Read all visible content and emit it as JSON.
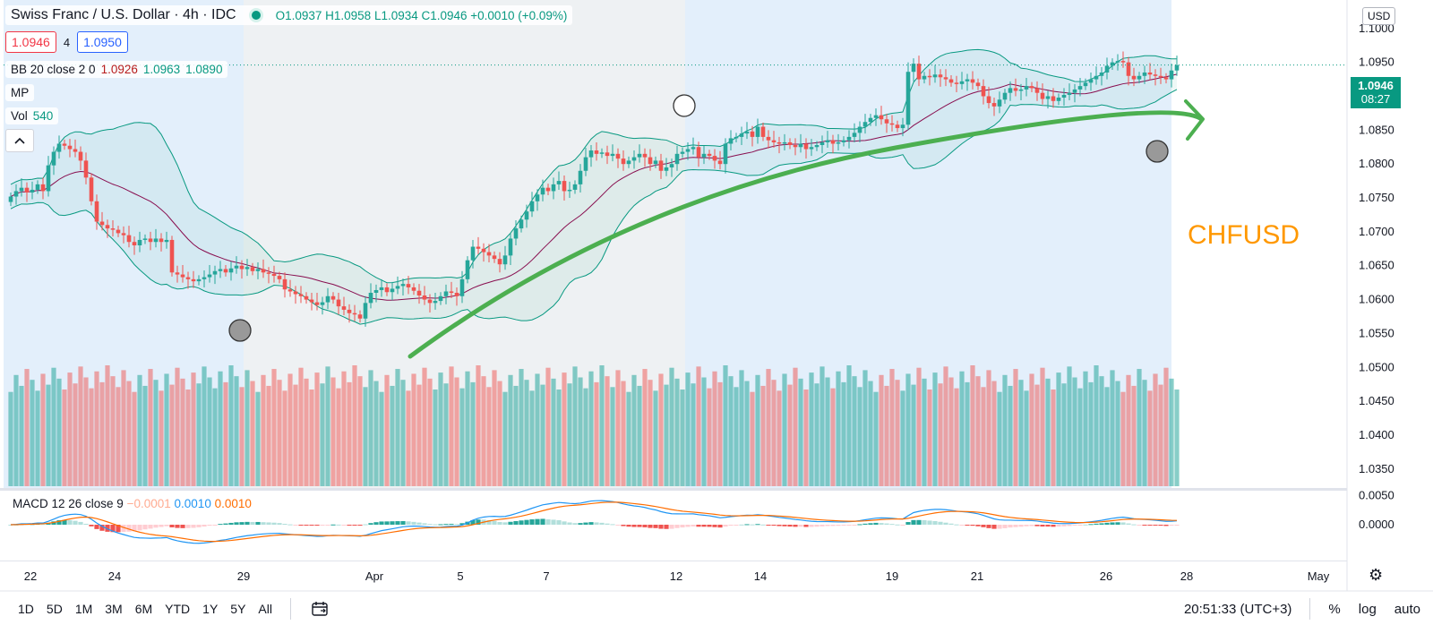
{
  "header": {
    "title": "Swiss Franc / U.S. Dollar · 4h · IDC",
    "ohlc": "O1.0937 H1.0958 L1.0934 C1.0946 +0.0010 (+0.09%)",
    "sell_price": "1.0946",
    "spread": "4",
    "buy_price": "1.0950"
  },
  "indicators": {
    "bb": {
      "label": "BB 20 close 2 0",
      "v1": "1.0926",
      "v2": "1.0963",
      "v3": "1.0890"
    },
    "mp": "MP",
    "vol": {
      "label": "Vol",
      "value": "540"
    },
    "macd": {
      "label": "MACD 12 26 close 9",
      "v1": "−0.0001",
      "v2": "0.0010",
      "v3": "0.0010"
    }
  },
  "collapse_icon": "chevron-up-icon",
  "currency_badge": "USD",
  "current_price": {
    "value": "1.0946",
    "countdown": "08:27"
  },
  "annotation": "CHFUSD",
  "colors": {
    "up": "#26a69a",
    "down": "#ef5350",
    "bb_band": "#089981",
    "bb_basis": "#880e4f",
    "macd": "#2196f3",
    "signal": "#ff6d00",
    "trend_arrow": "#4caf50",
    "session_blue": "#e3effb",
    "session_gray": "#eef1f3"
  },
  "toolbar": {
    "timeframes": [
      "1D",
      "5D",
      "1M",
      "3M",
      "6M",
      "YTD",
      "1Y",
      "5Y",
      "All"
    ],
    "calendar_icon": "calendar-range-icon",
    "clock": "20:51:33 (UTC+3)",
    "percent": "%",
    "log": "log",
    "auto": "auto",
    "settings_icon": "gear-icon"
  },
  "chart_data": {
    "type": "candlestick",
    "price_axis": {
      "ticks": [
        "1.1000",
        "1.0950",
        "1.0900",
        "1.0850",
        "1.0800",
        "1.0750",
        "1.0700",
        "1.0650",
        "1.0600",
        "1.0550",
        "1.0500",
        "1.0450",
        "1.0400",
        "1.0350"
      ],
      "range": [
        1.0322,
        1.1042
      ]
    },
    "macd_axis": {
      "ticks": [
        "0.0050",
        "0.0000"
      ],
      "range": [
        -0.006,
        0.006
      ]
    },
    "time_axis": {
      "labels": [
        "22",
        "24",
        "29",
        "Apr",
        "5",
        "7",
        "12",
        "14",
        "19",
        "21",
        "26",
        "28",
        "May"
      ]
    },
    "close": [
      1.0752,
      1.076,
      1.0765,
      1.0758,
      1.0762,
      1.077,
      1.076,
      1.0798,
      1.0818,
      1.083,
      1.0827,
      1.0822,
      1.0818,
      1.0805,
      1.078,
      1.0745,
      1.0715,
      1.071,
      1.0705,
      1.0703,
      1.0698,
      1.0695,
      1.0685,
      1.068,
      1.0688,
      1.069,
      1.0685,
      1.069,
      1.0685,
      1.0688,
      1.064,
      1.0637,
      1.0633,
      1.063,
      1.0627,
      1.063,
      1.0633,
      1.0637,
      1.0642,
      1.0645,
      1.064,
      1.0646,
      1.065,
      1.0645,
      1.0648,
      1.0642,
      1.0645,
      1.064,
      1.0638,
      1.0635,
      1.063,
      1.0615,
      1.0612,
      1.0608,
      1.0605,
      1.06,
      1.0596,
      1.0592,
      1.0596,
      1.0605,
      1.06,
      1.059,
      1.0585,
      1.058,
      1.0578,
      1.0572,
      1.0595,
      1.061,
      1.0614,
      1.0618,
      1.0611,
      1.0616,
      1.062,
      1.0623,
      1.0618,
      1.0613,
      1.0606,
      1.06,
      1.0595,
      1.0598,
      1.0605,
      1.0612,
      1.061,
      1.0605,
      1.063,
      1.0658,
      1.0678,
      1.0675,
      1.067,
      1.0665,
      1.066,
      1.0652,
      1.0665,
      1.069,
      1.0705,
      1.0718,
      1.073,
      1.0745,
      1.0755,
      1.0765,
      1.076,
      1.077,
      1.0775,
      1.076,
      1.0762,
      1.077,
      1.079,
      1.081,
      1.082,
      1.0815,
      1.0817,
      1.0812,
      1.0815,
      1.0808,
      1.08,
      1.0805,
      1.081,
      1.0815,
      1.081,
      1.08,
      1.0805,
      1.079,
      1.0795,
      1.08,
      1.0815,
      1.0818,
      1.0822,
      1.0825,
      1.081,
      1.0815,
      1.0812,
      1.0805,
      1.08,
      1.083,
      1.0838,
      1.084,
      1.0845,
      1.0848,
      1.084,
      1.0855,
      1.084,
      1.0835,
      1.0832,
      1.083,
      1.0832,
      1.0828,
      1.0825,
      1.083,
      1.0822,
      1.0825,
      1.0828,
      1.0832,
      1.0835,
      1.083,
      1.0832,
      1.0835,
      1.084,
      1.0846,
      1.0855,
      1.0862,
      1.0868,
      1.0872,
      1.0866,
      1.086,
      1.0858,
      1.0853,
      1.0858,
      1.0936,
      1.0948,
      1.0925,
      1.093,
      1.0928,
      1.0932,
      1.0928,
      1.0925,
      1.092,
      1.0918,
      1.0922,
      1.0925,
      1.092,
      1.0915,
      1.09,
      1.089,
      1.0885,
      1.0895,
      1.0905,
      1.0912,
      1.0908,
      1.091,
      1.0915,
      1.0912,
      1.0905,
      1.0896,
      1.09,
      1.0893,
      1.0898,
      1.0902,
      1.0905,
      1.091,
      1.0915,
      1.092,
      1.0925,
      1.093,
      1.0935,
      1.0945,
      1.095,
      1.0952,
      1.095,
      1.093,
      1.0925,
      1.093,
      1.0935,
      1.0932,
      1.093,
      1.0928,
      1.0925,
      1.0938,
      1.0946
    ]
  },
  "markers": {
    "open_circle": "marker-open",
    "gray_circle": "marker-filled"
  }
}
